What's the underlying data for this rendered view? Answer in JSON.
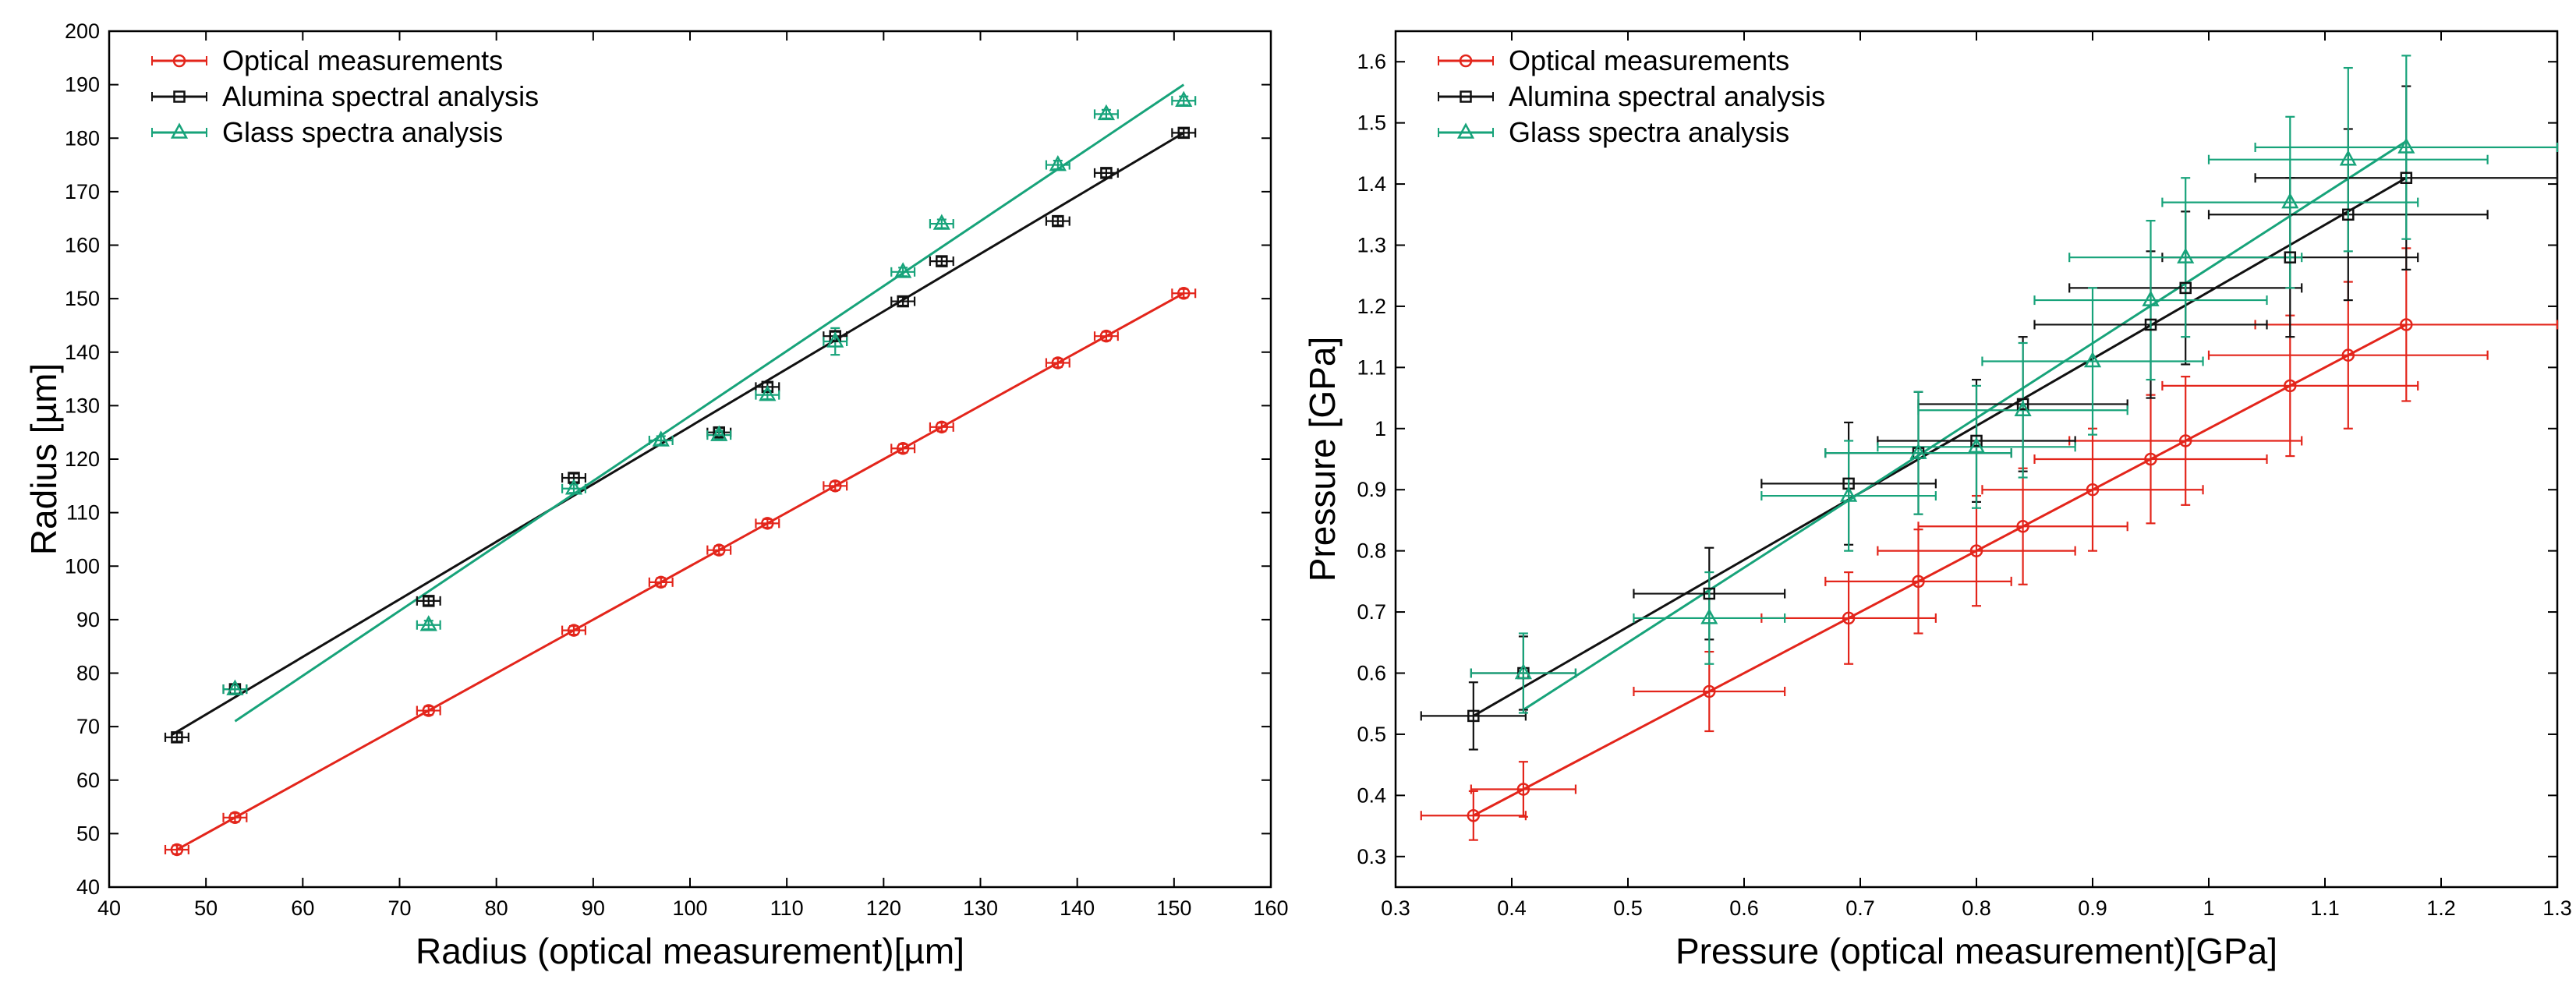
{
  "chart_data": [
    {
      "type": "scatter",
      "title": "",
      "xlabel": "Radius (optical measurement)[µm]",
      "ylabel": "Radius [µm]",
      "xlim": [
        40,
        160
      ],
      "ylim": [
        40,
        200
      ],
      "xticks": [
        40,
        50,
        60,
        70,
        80,
        90,
        100,
        110,
        120,
        130,
        140,
        150,
        160
      ],
      "yticks": [
        40,
        50,
        60,
        70,
        80,
        90,
        100,
        110,
        120,
        130,
        140,
        150,
        160,
        170,
        180,
        190,
        200
      ],
      "xtick_labels": [
        "40",
        "50",
        "60",
        "70",
        "80",
        "90",
        "100",
        "110",
        "120",
        "130",
        "140",
        "150",
        "160"
      ],
      "ytick_labels": [
        "40",
        "50",
        "60",
        "70",
        "80",
        "90",
        "100",
        "110",
        "120",
        "130",
        "140",
        "150",
        "160",
        "170",
        "180",
        "190",
        "200"
      ],
      "grid": false,
      "legend_position": "top-left",
      "series": [
        {
          "name": "Optical measurements",
          "color": "#e3251b",
          "marker": "circle",
          "x": [
            47,
            53,
            73,
            88,
            97,
            103,
            108,
            115,
            122,
            126,
            138,
            143,
            151
          ],
          "y": [
            47,
            53,
            73,
            88,
            97,
            103,
            108,
            115,
            122,
            126,
            138,
            143,
            151
          ],
          "xerr": [
            1.2,
            1.2,
            1.2,
            1.2,
            1.2,
            1.2,
            1.2,
            1.2,
            1.2,
            1.2,
            1.2,
            1.2,
            1.2
          ],
          "yerr": [
            0.8,
            0.8,
            0.8,
            0.8,
            0.8,
            0.8,
            0.8,
            0.8,
            0.8,
            0.8,
            0.8,
            0.8,
            0.8
          ],
          "fit": [
            [
              47,
              47
            ],
            [
              151,
              151
            ]
          ]
        },
        {
          "name": "Alumina spectral analysis",
          "color": "#111111",
          "marker": "square",
          "x": [
            47,
            53,
            73,
            88,
            103,
            108,
            115,
            122,
            126,
            138,
            143,
            151
          ],
          "y": [
            68,
            77,
            93.5,
            116.5,
            125,
            133.5,
            143,
            149.5,
            157,
            164.5,
            173.5,
            181
          ],
          "xerr": [
            1.2,
            1.2,
            1.2,
            1.2,
            1.2,
            1.2,
            1.2,
            1.2,
            1.2,
            1.2,
            1.2,
            1.2
          ],
          "yerr": [
            0.8,
            0.8,
            0.8,
            0.8,
            0.8,
            0.8,
            0.8,
            0.8,
            0.8,
            0.8,
            0.8,
            0.8
          ],
          "fit": [
            [
              46.5,
              68.5
            ],
            [
              151,
              181
            ]
          ]
        },
        {
          "name": "Glass spectra analysis",
          "color": "#17a37a",
          "marker": "triangle",
          "x": [
            53,
            73,
            88,
            97,
            103,
            108,
            115,
            122,
            126,
            138,
            143,
            151
          ],
          "y": [
            77,
            89,
            114.5,
            123.5,
            124.5,
            132,
            142,
            155,
            164,
            175,
            184.5,
            187
          ],
          "xerr": [
            1.2,
            1.2,
            1.2,
            1.2,
            1.2,
            1.2,
            1.2,
            1.2,
            1.2,
            1.2,
            1.2,
            1.2
          ],
          "yerr": [
            0.8,
            0.8,
            0.8,
            0.8,
            0.8,
            0.8,
            2.5,
            0.8,
            0.8,
            0.8,
            0.8,
            0.8
          ],
          "fit": [
            [
              53,
              71
            ],
            [
              151,
              190
            ]
          ]
        }
      ]
    },
    {
      "type": "scatter",
      "title": "",
      "xlabel": "Pressure (optical measurement)[GPa]",
      "ylabel": "Pressure [GPa]",
      "xlim": [
        0.3,
        1.3
      ],
      "ylim": [
        0.25,
        1.65
      ],
      "xticks": [
        0.3,
        0.4,
        0.5,
        0.6,
        0.7,
        0.8,
        0.9,
        1.0,
        1.1,
        1.2,
        1.3
      ],
      "yticks": [
        0.3,
        0.4,
        0.5,
        0.6,
        0.7,
        0.8,
        0.9,
        1.0,
        1.1,
        1.2,
        1.3,
        1.4,
        1.5,
        1.6
      ],
      "xtick_labels": [
        "0.3",
        "0.4",
        "0.5",
        "0.6",
        "0.7",
        "0.8",
        "0.9",
        "1",
        "1.1",
        "1.2",
        "1.3"
      ],
      "ytick_labels": [
        "0.3",
        "0.4",
        "0.5",
        "0.6",
        "0.7",
        "0.8",
        "0.9",
        "1",
        "1.1",
        "1.2",
        "1.3",
        "1.4",
        "1.5",
        "1.6"
      ],
      "grid": false,
      "legend_position": "top-left",
      "series": [
        {
          "name": "Optical measurements",
          "color": "#e3251b",
          "marker": "circle",
          "x": [
            0.367,
            0.41,
            0.57,
            0.69,
            0.75,
            0.8,
            0.84,
            0.9,
            0.95,
            0.98,
            1.07,
            1.12,
            1.17
          ],
          "y": [
            0.367,
            0.41,
            0.57,
            0.69,
            0.75,
            0.8,
            0.84,
            0.9,
            0.95,
            0.98,
            1.07,
            1.12,
            1.17
          ],
          "xerr": [
            0.045,
            0.045,
            0.065,
            0.075,
            0.08,
            0.085,
            0.09,
            0.095,
            0.1,
            0.1,
            0.11,
            0.12,
            0.13
          ],
          "yerr": [
            0.04,
            0.045,
            0.065,
            0.075,
            0.085,
            0.09,
            0.095,
            0.1,
            0.105,
            0.105,
            0.115,
            0.12,
            0.125
          ],
          "fit": [
            [
              0.367,
              0.367
            ],
            [
              1.17,
              1.17
            ]
          ]
        },
        {
          "name": "Alumina spectral analysis",
          "color": "#111111",
          "marker": "square",
          "x": [
            0.367,
            0.41,
            0.57,
            0.69,
            0.75,
            0.8,
            0.84,
            0.95,
            0.98,
            1.07,
            1.12,
            1.17
          ],
          "y": [
            0.53,
            0.6,
            0.73,
            0.91,
            0.96,
            0.98,
            1.04,
            1.17,
            1.23,
            1.28,
            1.35,
            1.41
          ],
          "xerr": [
            0.045,
            0.045,
            0.065,
            0.075,
            0.08,
            0.085,
            0.09,
            0.1,
            0.1,
            0.11,
            0.12,
            0.13
          ],
          "yerr": [
            0.055,
            0.06,
            0.075,
            0.1,
            0.1,
            0.1,
            0.11,
            0.12,
            0.125,
            0.13,
            0.14,
            0.15
          ],
          "fit": [
            [
              0.367,
              0.53
            ],
            [
              1.17,
              1.41
            ]
          ]
        },
        {
          "name": "Glass spectra analysis",
          "color": "#17a37a",
          "marker": "triangle",
          "x": [
            0.41,
            0.57,
            0.69,
            0.75,
            0.8,
            0.84,
            0.9,
            0.95,
            0.98,
            1.07,
            1.12,
            1.17
          ],
          "y": [
            0.6,
            0.69,
            0.89,
            0.96,
            0.97,
            1.03,
            1.11,
            1.21,
            1.28,
            1.37,
            1.44,
            1.46
          ],
          "xerr": [
            0.045,
            0.065,
            0.075,
            0.08,
            0.085,
            0.09,
            0.095,
            0.1,
            0.1,
            0.11,
            0.12,
            0.13
          ],
          "yerr": [
            0.065,
            0.075,
            0.09,
            0.1,
            0.1,
            0.11,
            0.12,
            0.13,
            0.13,
            0.14,
            0.15,
            0.15
          ],
          "fit": [
            [
              0.41,
              0.54
            ],
            [
              1.17,
              1.47
            ]
          ]
        }
      ]
    }
  ]
}
